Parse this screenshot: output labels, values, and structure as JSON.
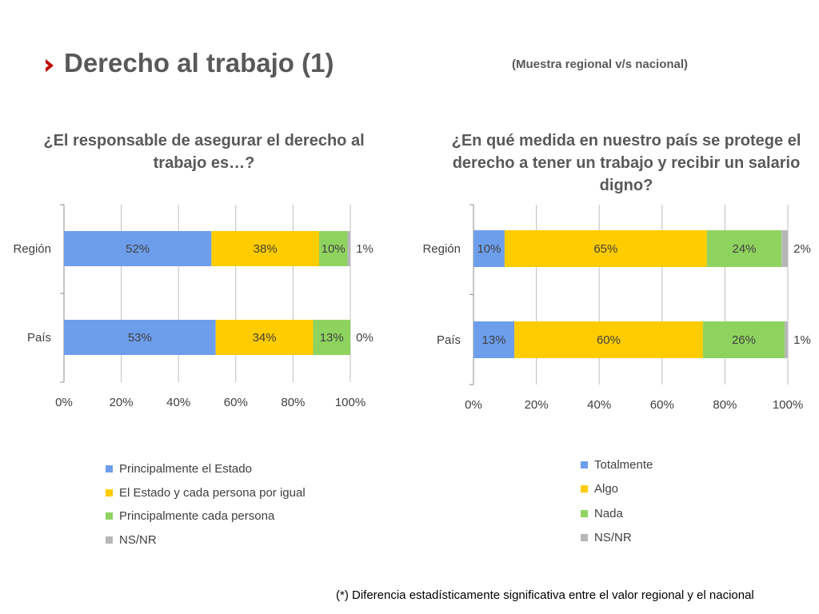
{
  "header": {
    "title": "Derecho al trabajo (1)",
    "subtitle": "(Muestra regional v/s nacional)",
    "icon": "chevron-right-icon",
    "icon_color": "#c00000"
  },
  "footnote": "(*) Diferencia estadísticamente significativa entre el valor regional y el nacional",
  "chart_data": [
    {
      "type": "bar",
      "orientation": "horizontal",
      "stacked": true,
      "percent": true,
      "title": "¿El responsable de asegurar el derecho al trabajo es…?",
      "title_lines": [
        "¿El responsable de asegurar el derecho al",
        "trabajo es…?"
      ],
      "categories": [
        "Región",
        "País"
      ],
      "xlim": [
        0,
        100
      ],
      "x_ticks": [
        "0%",
        "20%",
        "40%",
        "60%",
        "80%",
        "100%"
      ],
      "grid": true,
      "legend_position": "bottom",
      "series": [
        {
          "name": "Principalmente el Estado",
          "values": [
            52,
            53
          ],
          "labels": [
            "52%",
            "53%"
          ],
          "color": "#6d9eeb"
        },
        {
          "name": "El Estado y cada persona por igual",
          "values": [
            38,
            34
          ],
          "labels": [
            "38%",
            "34%"
          ],
          "color": "#ffcc00"
        },
        {
          "name": "Principalmente cada persona",
          "values": [
            10,
            13
          ],
          "labels": [
            "10%",
            "13%"
          ],
          "color": "#8fd35f"
        },
        {
          "name": "NS/NR",
          "values": [
            1,
            0
          ],
          "labels": [
            "1%",
            "0%"
          ],
          "color": "#b7b7b7",
          "label_outside": true
        }
      ]
    },
    {
      "type": "bar",
      "orientation": "horizontal",
      "stacked": true,
      "percent": true,
      "title": "¿En qué medida en nuestro país se protege el derecho a tener un trabajo y recibir un salario digno?",
      "title_lines": [
        "¿En qué medida en nuestro país se protege el",
        "derecho a tener un trabajo y recibir un salario",
        "digno?"
      ],
      "categories": [
        "Región",
        "País"
      ],
      "xlim": [
        0,
        100
      ],
      "x_ticks": [
        "0%",
        "20%",
        "40%",
        "60%",
        "80%",
        "100%"
      ],
      "grid": true,
      "legend_position": "bottom",
      "series": [
        {
          "name": "Totalmente",
          "values": [
            10,
            13
          ],
          "labels": [
            "10%",
            "13%"
          ],
          "color": "#6d9eeb"
        },
        {
          "name": "Algo",
          "values": [
            65,
            60
          ],
          "labels": [
            "65%",
            "60%"
          ],
          "color": "#ffcc00"
        },
        {
          "name": "Nada",
          "values": [
            24,
            26
          ],
          "labels": [
            "24%",
            "26%"
          ],
          "color": "#8fd35f"
        },
        {
          "name": "NS/NR",
          "values": [
            2,
            1
          ],
          "labels": [
            "2%",
            "1%"
          ],
          "color": "#b7b7b7",
          "label_outside": true
        }
      ]
    }
  ]
}
